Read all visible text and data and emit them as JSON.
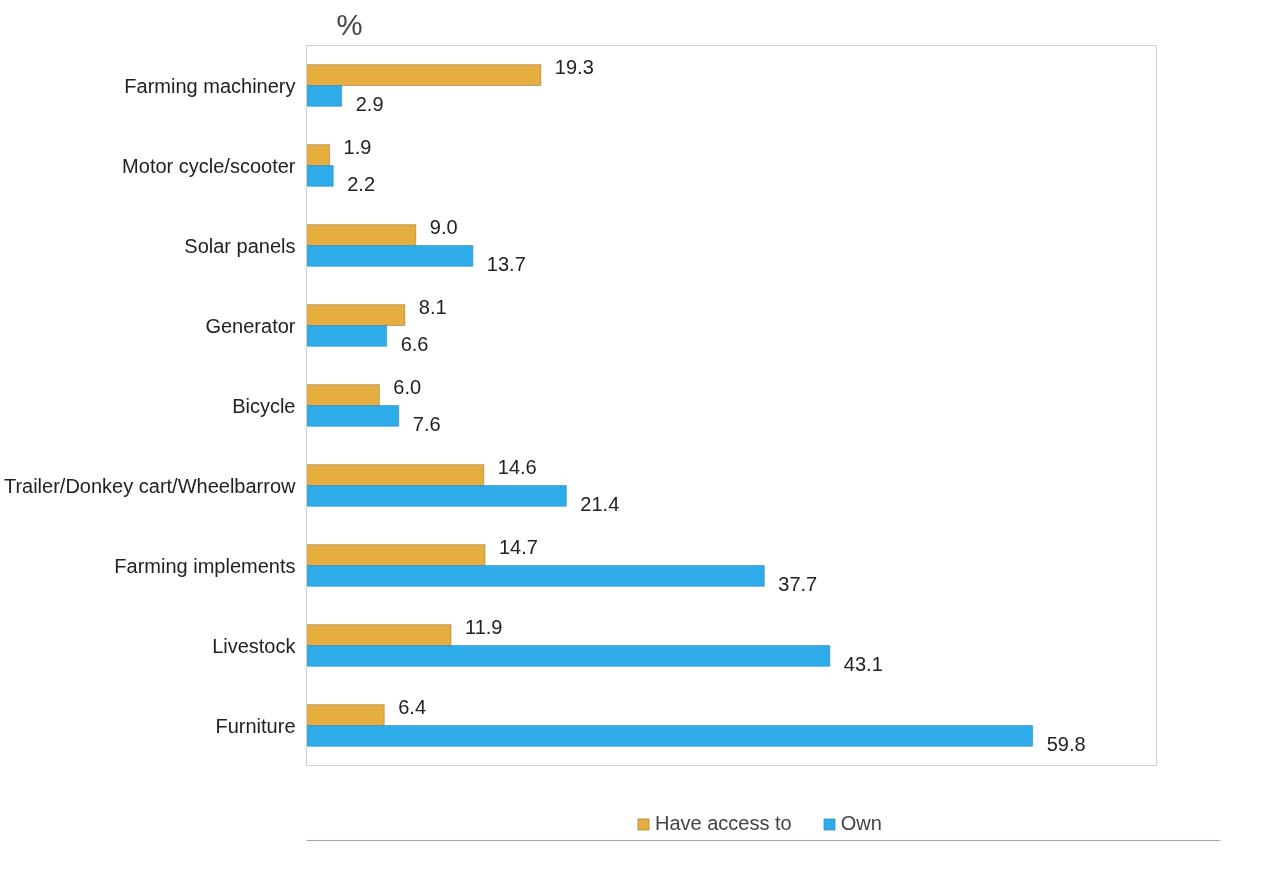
{
  "chart_data": {
    "type": "bar",
    "orientation": "horizontal",
    "title": "%",
    "categories": [
      "Farming machinery",
      "Motor cycle/scooter",
      "Solar panels",
      "Generator",
      "Bicycle",
      "Trailer/Donkey cart/Wheelbarrow",
      "Farming implements",
      "Livestock",
      "Furniture"
    ],
    "series": [
      {
        "name": "Have access to",
        "color": "#e6ad3f",
        "values": [
          19.3,
          1.9,
          9.0,
          8.1,
          6.0,
          14.6,
          14.7,
          11.9,
          6.4
        ],
        "value_labels": [
          "19.3",
          "1.9",
          "9.0",
          "8.1",
          "6.0",
          "14.6",
          "14.7",
          "11.9",
          "6.4"
        ]
      },
      {
        "name": "Own",
        "color": "#2eabe9",
        "values": [
          2.9,
          2.2,
          13.7,
          6.6,
          7.6,
          21.4,
          37.7,
          43.1,
          59.8
        ],
        "value_labels": [
          "2.9",
          "2.2",
          "13.7",
          "6.6",
          "7.6",
          "21.4",
          "37.7",
          "43.1",
          "59.8"
        ]
      }
    ],
    "xlim": [
      0,
      70
    ],
    "data_labels": true,
    "tick_labels": "y",
    "grid": false,
    "legend": "bottom"
  }
}
